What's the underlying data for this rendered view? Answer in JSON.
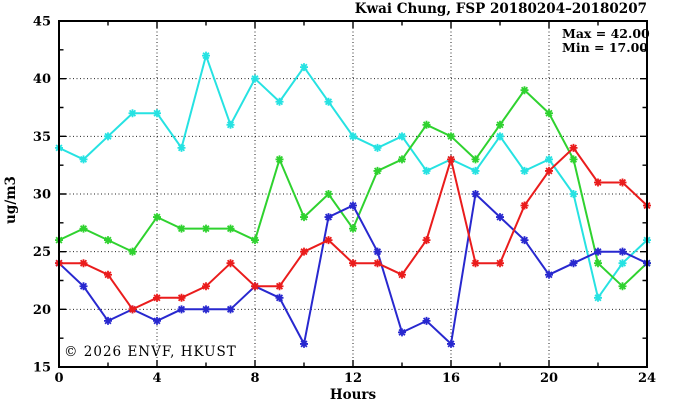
{
  "chart_data": {
    "type": "line",
    "title": "Kwai Chung, FSP 20180204–20180207",
    "xlabel": "Hours",
    "ylabel": "ug/m3",
    "watermark": "© 2026 ENVF, HKUST",
    "annotations": {
      "max": "Max = 42.00",
      "min": "Min = 17.00"
    },
    "xlim": [
      0,
      24
    ],
    "ylim": [
      15,
      45
    ],
    "xticks": [
      0,
      4,
      8,
      12,
      16,
      20,
      24
    ],
    "xminorticks": [
      2,
      6,
      10,
      14,
      18,
      22
    ],
    "yticks": [
      15,
      20,
      25,
      30,
      35,
      40,
      45
    ],
    "yminorticks": [
      17.5,
      22.5,
      27.5,
      32.5,
      37.5,
      42.5
    ],
    "xgrid": [
      4,
      8,
      12,
      16,
      20
    ],
    "ygrid": [
      20,
      25,
      30,
      35,
      40
    ],
    "grid": true,
    "legend_position": "none",
    "x": [
      0,
      1,
      2,
      3,
      4,
      5,
      6,
      7,
      8,
      9,
      10,
      11,
      12,
      13,
      14,
      15,
      16,
      17,
      18,
      19,
      20,
      21,
      22,
      23,
      24
    ],
    "series": [
      {
        "name": "series-cyan",
        "color": "#26e2e2",
        "values": [
          34,
          33,
          35,
          37,
          37,
          34,
          42,
          36,
          40,
          38,
          41,
          38,
          35,
          34,
          35,
          32,
          33,
          32,
          35,
          32,
          33,
          30,
          21,
          24,
          26
        ]
      },
      {
        "name": "series-green",
        "color": "#2fd22f",
        "values": [
          26,
          27,
          26,
          25,
          28,
          27,
          27,
          27,
          26,
          33,
          28,
          30,
          27,
          32,
          33,
          36,
          35,
          33,
          36,
          39,
          37,
          33,
          24,
          22,
          24
        ]
      },
      {
        "name": "series-blue",
        "color": "#2828cf",
        "values": [
          24,
          22,
          19,
          20,
          19,
          20,
          20,
          20,
          22,
          21,
          17,
          28,
          29,
          25,
          18,
          19,
          17,
          30,
          28,
          26,
          23,
          24,
          25,
          25,
          24
        ]
      },
      {
        "name": "series-red",
        "color": "#ea1c1c",
        "values": [
          24,
          24,
          23,
          20,
          21,
          21,
          22,
          24,
          22,
          22,
          25,
          26,
          24,
          24,
          23,
          26,
          33,
          24,
          24,
          29,
          32,
          34,
          31,
          31,
          29
        ]
      }
    ]
  }
}
